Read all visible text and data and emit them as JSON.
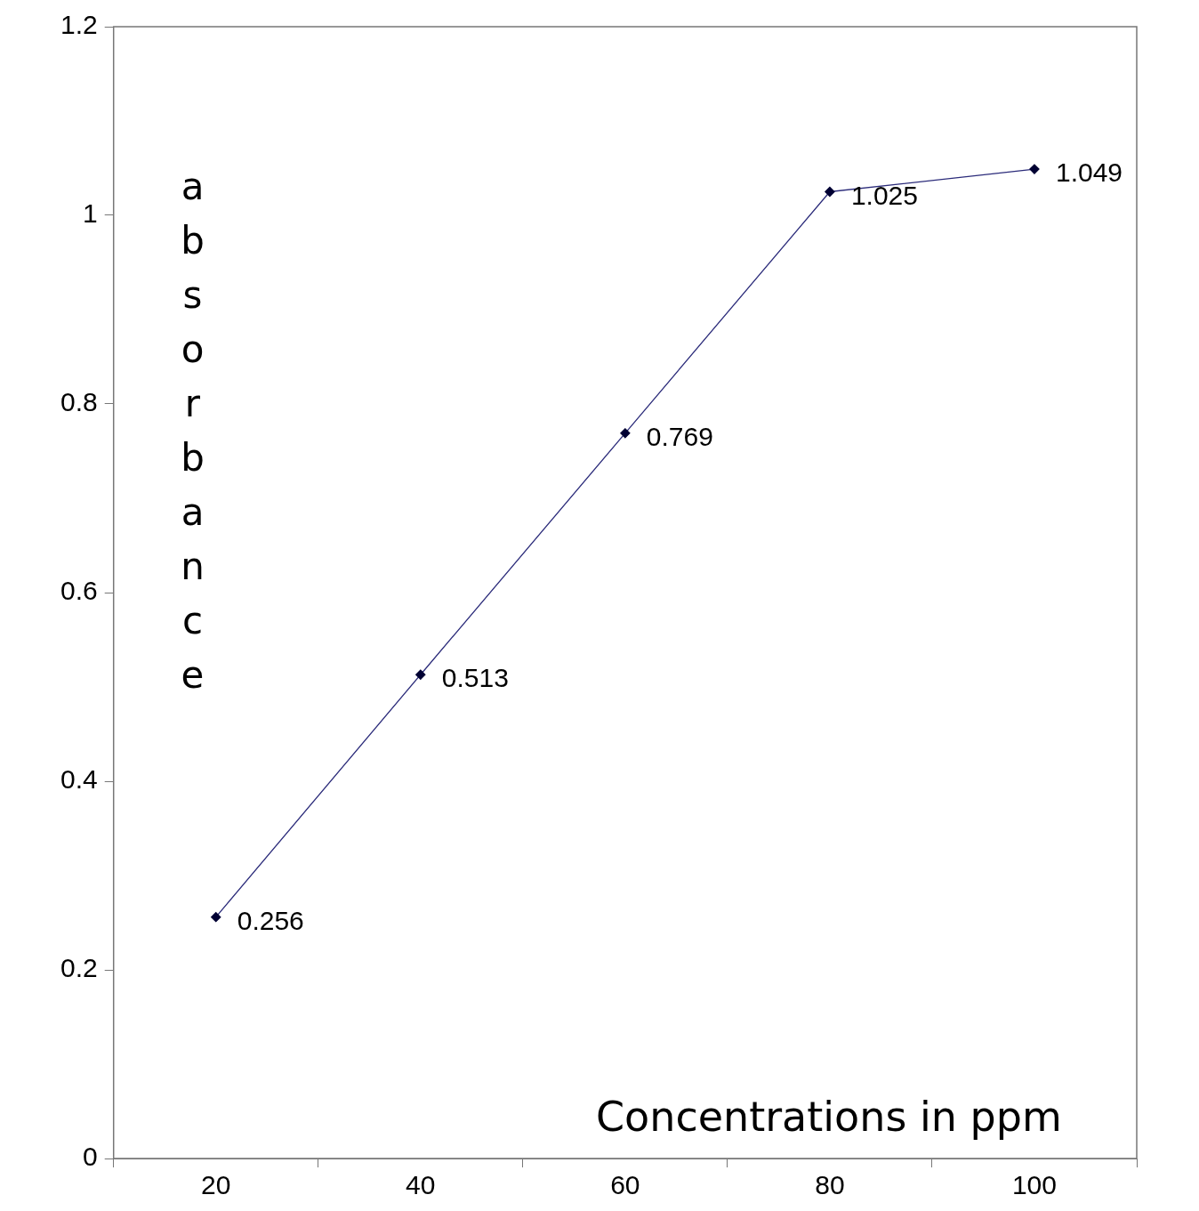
{
  "chart_data": {
    "type": "line",
    "xlabel": "Concentrations in ppm",
    "ylabel": "absorbance",
    "categories": [
      "20",
      "40",
      "60",
      "80",
      "100"
    ],
    "series": [
      {
        "color": "#2b2b7a",
        "values": [
          0.256,
          0.513,
          0.769,
          1.025,
          1.049
        ]
      }
    ],
    "ylim": [
      0,
      1.2
    ],
    "yticks": [
      0,
      0.2,
      0.4,
      0.6,
      0.8,
      1,
      1.2
    ],
    "data_labels": true,
    "marker": "diamond",
    "line_style": "solid",
    "grid": false,
    "legend": false
  }
}
